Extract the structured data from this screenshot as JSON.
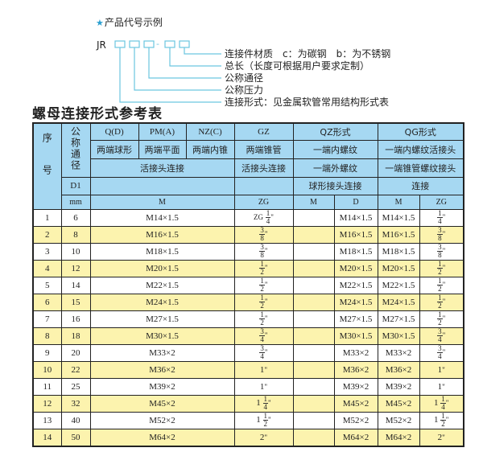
{
  "diagram": {
    "title": "产品代号示例",
    "code_prefix": "JR",
    "separator": "-",
    "labels": [
      "连接件材质　c：为碳钢　b：为不锈钢",
      "总长（长度可根据用户要求定制）",
      "公称通径",
      "公称压力",
      "连接形式：见金属软管常用结构形式表"
    ],
    "line_color": "#6cc6e0"
  },
  "table_title": "螺母连接形式参考表",
  "header": {
    "seq": "序号",
    "nominal": "公称通径",
    "qd": "Q(D)",
    "pm": "PM(A)",
    "nz": "NZ(C)",
    "gz": "GZ",
    "qz": "QZ形式",
    "qg": "QG形式",
    "qd_desc": "两端球形",
    "pm_desc": "两端平面",
    "nz_desc": "两端内锥",
    "gz_desc": "两端锥管",
    "qz_desc1": "一端内螺纹",
    "qg_desc1": "一端内螺纹活接头",
    "union": "活接头连接",
    "gz_union": "活接头连接",
    "qz_desc2": "一端外螺纹",
    "qg_desc2": "一端锥管螺纹接头",
    "d1": "D1",
    "qz_desc3": "球形接头连接",
    "qg_desc3": "连接",
    "mm": "mm",
    "m": "M",
    "zg": "ZG",
    "qz_m": "M",
    "qz_d": "D",
    "qg_m": "M",
    "qg_zg": "ZG"
  },
  "colors": {
    "header_bg": "#a6d8f2",
    "alt_row_bg": "#fcf3ae"
  },
  "rows": [
    {
      "no": "1",
      "d1": "6",
      "m": "M14×1.5",
      "gz": {
        "pre": "ZG",
        "whole": "",
        "num": "1",
        "den": "4",
        "suf": "\""
      },
      "qz_d": "M14×1.5",
      "qg_m": "M14×1.5",
      "qg_zg": {
        "pre": "",
        "whole": "",
        "num": "1",
        "den": "4",
        "suf": "\""
      }
    },
    {
      "no": "2",
      "d1": "8",
      "m": "M16×1.5",
      "gz": {
        "pre": "",
        "whole": "",
        "num": "3",
        "den": "8",
        "suf": "\""
      },
      "qz_d": "M16×1.5",
      "qg_m": "M16×1.5",
      "qg_zg": {
        "pre": "",
        "whole": "",
        "num": "3",
        "den": "8",
        "suf": "\""
      }
    },
    {
      "no": "3",
      "d1": "10",
      "m": "M18×1.5",
      "gz": {
        "pre": "",
        "whole": "",
        "num": "3",
        "den": "8",
        "suf": "\""
      },
      "qz_d": "M18×1.5",
      "qg_m": "M18×1.5",
      "qg_zg": {
        "pre": "",
        "whole": "",
        "num": "3",
        "den": "8",
        "suf": "\""
      }
    },
    {
      "no": "4",
      "d1": "12",
      "m": "M20×1.5",
      "gz": {
        "pre": "",
        "whole": "",
        "num": "1",
        "den": "2",
        "suf": "\""
      },
      "qz_d": "M20×1.5",
      "qg_m": "M20×1.5",
      "qg_zg": {
        "pre": "",
        "whole": "",
        "num": "1",
        "den": "2",
        "suf": "\""
      }
    },
    {
      "no": "5",
      "d1": "14",
      "m": "M22×1.5",
      "gz": {
        "pre": "",
        "whole": "",
        "num": "1",
        "den": "2",
        "suf": "\""
      },
      "qz_d": "M22×1.5",
      "qg_m": "M22×1.5",
      "qg_zg": {
        "pre": "",
        "whole": "",
        "num": "1",
        "den": "2",
        "suf": "\""
      }
    },
    {
      "no": "6",
      "d1": "15",
      "m": "M24×1.5",
      "gz": {
        "pre": "",
        "whole": "",
        "num": "1",
        "den": "2",
        "suf": "\""
      },
      "qz_d": "M24×1.5",
      "qg_m": "M24×1.5",
      "qg_zg": {
        "pre": "",
        "whole": "",
        "num": "1",
        "den": "2",
        "suf": "\""
      }
    },
    {
      "no": "7",
      "d1": "16",
      "m": "M27×1.5",
      "gz": {
        "pre": "",
        "whole": "",
        "num": "1",
        "den": "2",
        "suf": "\""
      },
      "qz_d": "M27×1.5",
      "qg_m": "M27×1.5",
      "qg_zg": {
        "pre": "",
        "whole": "",
        "num": "1",
        "den": "2",
        "suf": "\""
      }
    },
    {
      "no": "8",
      "d1": "18",
      "m": "M30×1.5",
      "gz": {
        "pre": "",
        "whole": "",
        "num": "3",
        "den": "4",
        "suf": "\""
      },
      "qz_d": "M30×1.5",
      "qg_m": "M30×1.5",
      "qg_zg": {
        "pre": "",
        "whole": "",
        "num": "3",
        "den": "4",
        "suf": "\""
      }
    },
    {
      "no": "9",
      "d1": "20",
      "m": "M33×2",
      "gz": {
        "pre": "",
        "whole": "",
        "num": "3",
        "den": "4",
        "suf": "\""
      },
      "qz_d": "M33×2",
      "qg_m": "M33×2",
      "qg_zg": {
        "pre": "",
        "whole": "",
        "num": "3",
        "den": "4",
        "suf": "\""
      }
    },
    {
      "no": "10",
      "d1": "22",
      "m": "M36×2",
      "gz": {
        "pre": "",
        "whole": "1",
        "num": "",
        "den": "",
        "suf": "\""
      },
      "qz_d": "M36×2",
      "qg_m": "M36×2",
      "qg_zg": {
        "pre": "",
        "whole": "1",
        "num": "",
        "den": "",
        "suf": "\""
      }
    },
    {
      "no": "11",
      "d1": "25",
      "m": "M39×2",
      "gz": {
        "pre": "",
        "whole": "1",
        "num": "",
        "den": "",
        "suf": "\""
      },
      "qz_d": "M39×2",
      "qg_m": "M39×2",
      "qg_zg": {
        "pre": "",
        "whole": "1",
        "num": "",
        "den": "",
        "suf": "\""
      }
    },
    {
      "no": "12",
      "d1": "32",
      "m": "M45×2",
      "gz": {
        "pre": "",
        "whole": "1",
        "num": "1",
        "den": "4",
        "suf": "\""
      },
      "qz_d": "M45×2",
      "qg_m": "M45×2",
      "qg_zg": {
        "pre": "",
        "whole": "1",
        "num": "1",
        "den": "4",
        "suf": "\""
      }
    },
    {
      "no": "13",
      "d1": "40",
      "m": "M52×2",
      "gz": {
        "pre": "",
        "whole": "1",
        "num": "1",
        "den": "2",
        "suf": "\""
      },
      "qz_d": "M52×2",
      "qg_m": "M52×2",
      "qg_zg": {
        "pre": "",
        "whole": "1",
        "num": "1",
        "den": "2",
        "suf": "\""
      }
    },
    {
      "no": "14",
      "d1": "50",
      "m": "M64×2",
      "gz": {
        "pre": "",
        "whole": "2",
        "num": "",
        "den": "",
        "suf": "\""
      },
      "qz_d": "M64×2",
      "qg_m": "M64×2",
      "qg_zg": {
        "pre": "",
        "whole": "2",
        "num": "",
        "den": "",
        "suf": "\""
      }
    }
  ]
}
